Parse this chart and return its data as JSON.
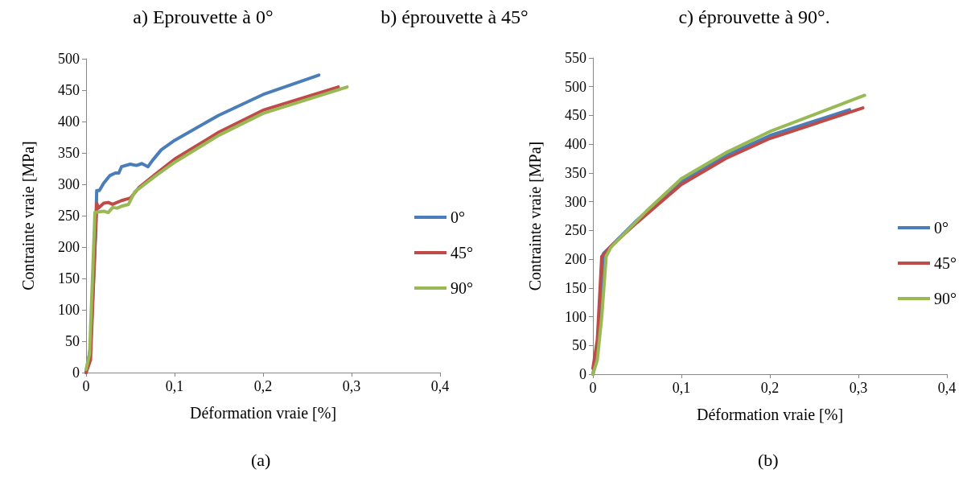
{
  "chart_data": [
    {
      "type": "line",
      "xlabel": "Déformation vraie [%]",
      "ylabel": "Contrainte vraie [MPa]",
      "annotations": [
        "a) Eprouvette à 0°",
        "b) éprouvette à 45°",
        "(a)"
      ],
      "xlim": [
        0,
        0.4
      ],
      "xticks": [
        0,
        {
          "value": 0.1,
          "label": "0,1"
        },
        {
          "value": 0.2,
          "label": "0,2"
        },
        {
          "value": 0.3,
          "label": "0,3"
        },
        {
          "value": 0.4,
          "label": "0,4"
        }
      ],
      "ylim": [
        0,
        500
      ],
      "yticks": [
        0,
        50,
        100,
        150,
        200,
        250,
        300,
        350,
        400,
        450,
        500
      ],
      "grid": false,
      "legend": "right",
      "marker": "none",
      "line_style": "solid",
      "series": [
        {
          "name": "0°",
          "color": "#4a7ebb",
          "x": [
            0,
            0.005,
            0.011,
            0.012,
            0.015,
            0.02,
            0.027,
            0.033,
            0.037,
            0.04,
            0.05,
            0.057,
            0.063,
            0.07,
            0.075,
            0.085,
            0.1,
            0.15,
            0.2,
            0.263
          ],
          "values": [
            0,
            40,
            230,
            290,
            290,
            302,
            314,
            318,
            318,
            328,
            332,
            330,
            333,
            328,
            338,
            355,
            370,
            410,
            443,
            474
          ]
        },
        {
          "name": "45°",
          "color": "#be4b48",
          "x": [
            0,
            0.005,
            0.01,
            0.012,
            0.014,
            0.02,
            0.025,
            0.03,
            0.04,
            0.05,
            0.06,
            0.08,
            0.1,
            0.15,
            0.2,
            0.285
          ],
          "values": [
            0,
            20,
            200,
            270,
            262,
            270,
            271,
            268,
            274,
            278,
            295,
            318,
            340,
            383,
            418,
            455
          ]
        },
        {
          "name": "90°",
          "color": "#98b954",
          "x": [
            0,
            0.004,
            0.01,
            0.015,
            0.02,
            0.025,
            0.03,
            0.035,
            0.04,
            0.048,
            0.055,
            0.08,
            0.1,
            0.15,
            0.2,
            0.295
          ],
          "values": [
            5,
            30,
            255,
            256,
            257,
            255,
            263,
            262,
            265,
            268,
            288,
            315,
            335,
            378,
            413,
            455
          ]
        }
      ]
    },
    {
      "type": "line",
      "xlabel": "Déformation vraie [%]",
      "ylabel": "Contrainte vraie [MPa]",
      "annotations": [
        "c) éprouvette à 90°.",
        "(b)"
      ],
      "xlim": [
        0,
        0.4
      ],
      "xticks": [
        0,
        {
          "value": 0.1,
          "label": "0,1"
        },
        {
          "value": 0.2,
          "label": "0,2"
        },
        {
          "value": 0.3,
          "label": "0,3"
        },
        {
          "value": 0.4,
          "label": "0,4"
        }
      ],
      "ylim": [
        0,
        550
      ],
      "yticks": [
        0,
        50,
        100,
        150,
        200,
        250,
        300,
        350,
        400,
        450,
        500,
        550
      ],
      "grid": false,
      "legend": "right",
      "marker": "none",
      "line_style": "solid",
      "series": [
        {
          "name": "0°",
          "color": "#4a7ebb",
          "x": [
            0,
            0.005,
            0.01,
            0.012,
            0.02,
            0.05,
            0.1,
            0.15,
            0.2,
            0.29
          ],
          "values": [
            0,
            40,
            150,
            210,
            222,
            268,
            335,
            380,
            415,
            460
          ]
        },
        {
          "name": "45°",
          "color": "#be4b48",
          "x": [
            0,
            0.005,
            0.01,
            0.02,
            0.05,
            0.1,
            0.15,
            0.2,
            0.305
          ],
          "values": [
            10,
            60,
            205,
            222,
            264,
            330,
            375,
            410,
            463
          ]
        },
        {
          "name": "90°",
          "color": "#98b954",
          "x": [
            0,
            0.005,
            0.01,
            0.015,
            0.02,
            0.06,
            0.1,
            0.15,
            0.2,
            0.307
          ],
          "values": [
            0,
            25,
            100,
            205,
            220,
            283,
            340,
            385,
            422,
            485
          ]
        }
      ]
    }
  ]
}
